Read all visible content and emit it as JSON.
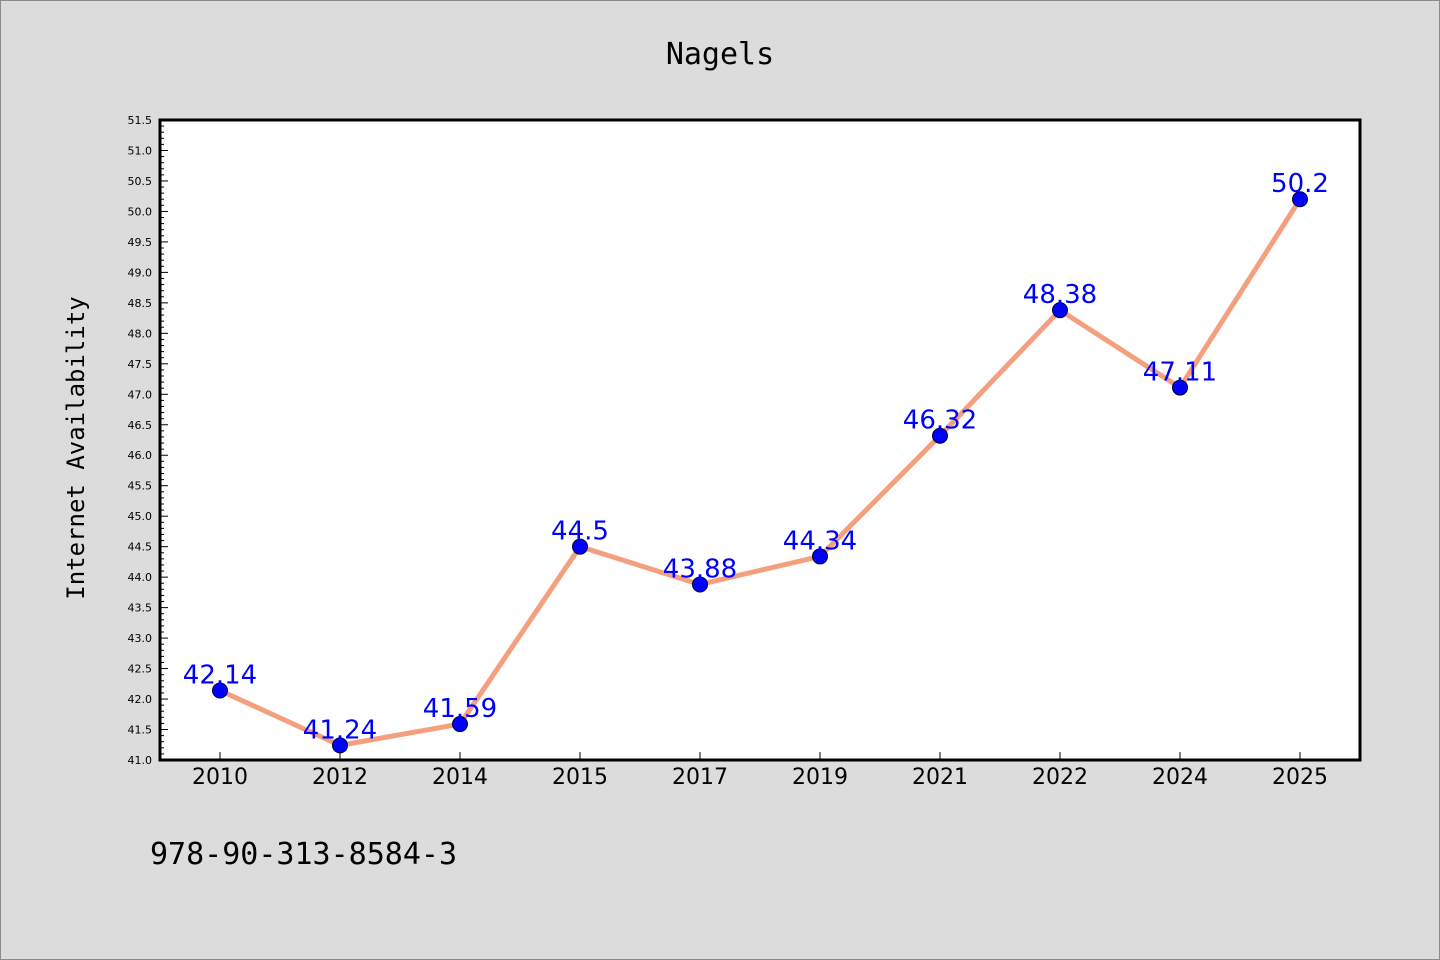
{
  "title": "Nagels",
  "footer": "978-90-313-8584-3",
  "chart_data": {
    "type": "line",
    "title": "Nagels",
    "xlabel": "",
    "ylabel": "Internet Availability",
    "categories": [
      "2010",
      "2012",
      "2014",
      "2015",
      "2017",
      "2019",
      "2021",
      "2022",
      "2024",
      "2025"
    ],
    "series": [
      {
        "values": [
          42.14,
          41.24,
          41.59,
          44.5,
          43.88,
          44.34,
          46.32,
          48.38,
          47.11,
          50.2
        ],
        "data_labels": [
          "42.14",
          "41.24",
          "41.59",
          "44.5",
          "43.88",
          "44.34",
          "46.32",
          "48.38",
          "47.11",
          "50.2"
        ]
      }
    ],
    "ylim": [
      41.0,
      51.5
    ],
    "yticks": [
      "41.0",
      "41.5",
      "42.0",
      "42.5",
      "43.0",
      "43.5",
      "44.0",
      "44.5",
      "45.0",
      "45.5",
      "46.0",
      "46.5",
      "47.0",
      "47.5",
      "48.0",
      "48.5",
      "49.0",
      "49.5",
      "50.0",
      "50.5",
      "51.0",
      "51.5"
    ],
    "grid": false,
    "legend": "none",
    "colors": {
      "line": "#f4a07e",
      "marker": "#0000ff",
      "labels": "#0000ff",
      "background": "#dcdcdc",
      "plot_background": "#ffffff"
    }
  }
}
